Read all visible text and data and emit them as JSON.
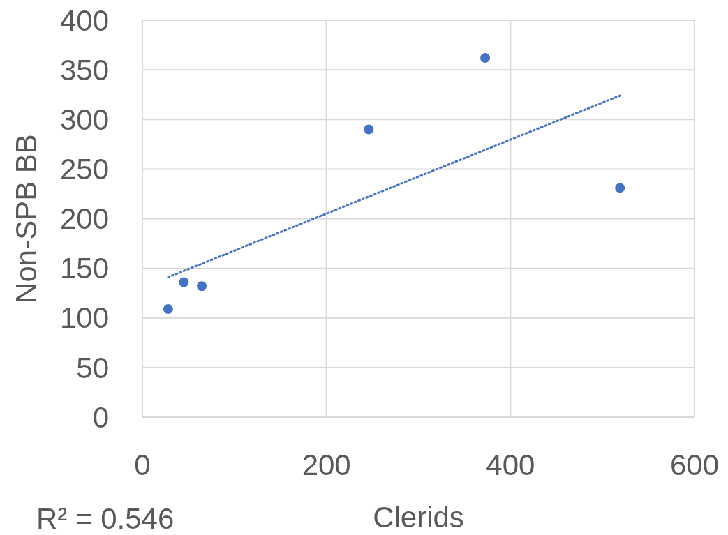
{
  "chart_data": {
    "type": "scatter",
    "xlabel": "Clerids",
    "ylabel": "Non-SPB BB",
    "xlim": [
      0,
      600
    ],
    "xticks": [
      0,
      200,
      400,
      600
    ],
    "ylim": [
      0,
      400
    ],
    "yticks": [
      0,
      50,
      100,
      150,
      200,
      250,
      300,
      350,
      400
    ],
    "grid": true,
    "marker": "circle",
    "series": [
      {
        "color": "#4472c4",
        "x": [
          28,
          45,
          64.5,
          246,
          372.5,
          519
        ],
        "values": [
          109,
          136,
          132,
          290,
          362,
          231
        ]
      },
      {
        "type": "line",
        "color": "#4472c4",
        "line_style": "dotted",
        "marker": "none",
        "x": [
          28,
          519
        ],
        "values": [
          141,
          324
        ]
      }
    ],
    "annotations": [
      "R² = 0.546"
    ]
  }
}
